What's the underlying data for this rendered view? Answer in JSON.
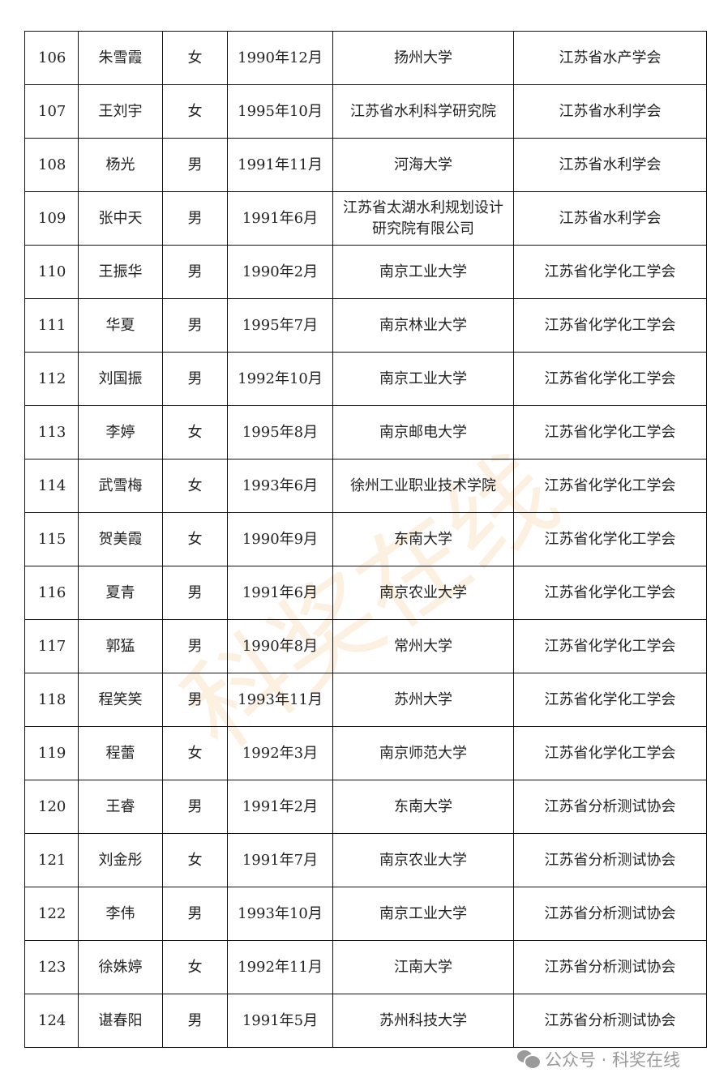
{
  "rows": [
    [
      "106",
      "朱雪霞",
      "女",
      "1990年12月",
      "扬州大学",
      "江苏省水产学会"
    ],
    [
      "107",
      "王刘宇",
      "女",
      "1995年10月",
      "江苏省水利科学研究院",
      "江苏省水利学会"
    ],
    [
      "108",
      "杨光",
      "男",
      "1991年11月",
      "河海大学",
      "江苏省水利学会"
    ],
    [
      "109",
      "张中天",
      "男",
      "1991年6月",
      "江苏省太湖水利规划设计研究院有限公司",
      "江苏省水利学会"
    ],
    [
      "110",
      "王振华",
      "男",
      "1990年2月",
      "南京工业大学",
      "江苏省化学化工学会"
    ],
    [
      "111",
      "华夏",
      "男",
      "1995年7月",
      "南京林业大学",
      "江苏省化学化工学会"
    ],
    [
      "112",
      "刘国振",
      "男",
      "1992年10月",
      "南京工业大学",
      "江苏省化学化工学会"
    ],
    [
      "113",
      "李婷",
      "女",
      "1995年8月",
      "南京邮电大学",
      "江苏省化学化工学会"
    ],
    [
      "114",
      "武雪梅",
      "女",
      "1993年6月",
      "徐州工业职业技术学院",
      "江苏省化学化工学会"
    ],
    [
      "115",
      "贺美霞",
      "女",
      "1990年9月",
      "东南大学",
      "江苏省化学化工学会"
    ],
    [
      "116",
      "夏青",
      "男",
      "1991年6月",
      "南京农业大学",
      "江苏省化学化工学会"
    ],
    [
      "117",
      "郭猛",
      "男",
      "1990年8月",
      "常州大学",
      "江苏省化学化工学会"
    ],
    [
      "118",
      "程笑笑",
      "男",
      "1993年11月",
      "苏州大学",
      "江苏省化学化工学会"
    ],
    [
      "119",
      "程蕾",
      "女",
      "1992年3月",
      "南京师范大学",
      "江苏省化学化工学会"
    ],
    [
      "120",
      "王睿",
      "男",
      "1991年2月",
      "东南大学",
      "江苏省分析测试协会"
    ],
    [
      "121",
      "刘金彤",
      "女",
      "1991年7月",
      "南京农业大学",
      "江苏省分析测试协会"
    ],
    [
      "122",
      "李伟",
      "男",
      "1993年10月",
      "南京工业大学",
      "江苏省分析测试协会"
    ],
    [
      "123",
      "徐姝婷",
      "女",
      "1992年11月",
      "江南大学",
      "江苏省分析测试协会"
    ],
    [
      "124",
      "谌春阳",
      "男",
      "1991年5月",
      "苏州科技大学",
      "江苏省分析测试协会"
    ]
  ],
  "watermark": "科奖在线",
  "attribution": {
    "icon": "wechat-icon",
    "text": "公众号 · 科奖在线"
  }
}
